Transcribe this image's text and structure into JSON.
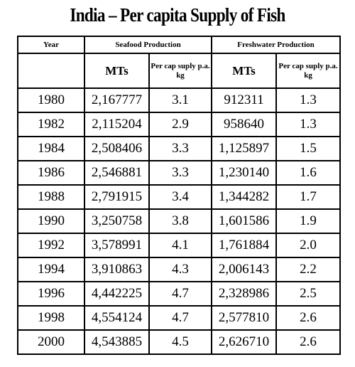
{
  "title": "India – Per capita Supply of Fish",
  "table": {
    "year_header": "Year",
    "group_headers": [
      "Seafood Production",
      "Freshwater Production"
    ],
    "sub_headers": {
      "seafood_mts": "MTs",
      "seafood_percap": "Per cap suply p.a. kg",
      "fresh_mts": "MTs",
      "fresh_percap": "Per cap suply p.a. kg"
    },
    "rows": [
      {
        "year": "1980",
        "seafood_mts": "2,167777",
        "seafood_percap": "3.1",
        "fresh_mts": "912311",
        "fresh_percap": "1.3"
      },
      {
        "year": "1982",
        "seafood_mts": "2,115204",
        "seafood_percap": "2.9",
        "fresh_mts": "958640",
        "fresh_percap": "1.3"
      },
      {
        "year": "1984",
        "seafood_mts": "2,508406",
        "seafood_percap": "3.3",
        "fresh_mts": "1,125897",
        "fresh_percap": "1.5"
      },
      {
        "year": "1986",
        "seafood_mts": "2,546881",
        "seafood_percap": "3.3",
        "fresh_mts": "1,230140",
        "fresh_percap": "1.6"
      },
      {
        "year": "1988",
        "seafood_mts": "2,791915",
        "seafood_percap": "3.4",
        "fresh_mts": "1,344282",
        "fresh_percap": "1.7"
      },
      {
        "year": "1990",
        "seafood_mts": "3,250758",
        "seafood_percap": "3.8",
        "fresh_mts": "1,601586",
        "fresh_percap": "1.9"
      },
      {
        "year": "1992",
        "seafood_mts": "3,578991",
        "seafood_percap": "4.1",
        "fresh_mts": "1,761884",
        "fresh_percap": "2.0"
      },
      {
        "year": "1994",
        "seafood_mts": "3,910863",
        "seafood_percap": "4.3",
        "fresh_mts": "2,006143",
        "fresh_percap": "2.2"
      },
      {
        "year": "1996",
        "seafood_mts": "4,442225",
        "seafood_percap": "4.7",
        "fresh_mts": "2,328986",
        "fresh_percap": "2.5"
      },
      {
        "year": "1998",
        "seafood_mts": "4,554124",
        "seafood_percap": "4.7",
        "fresh_mts": "2,577810",
        "fresh_percap": "2.6"
      },
      {
        "year": "2000",
        "seafood_mts": "4,543885",
        "seafood_percap": "4.5",
        "fresh_mts": "2,626710",
        "fresh_percap": "2.6"
      }
    ]
  }
}
